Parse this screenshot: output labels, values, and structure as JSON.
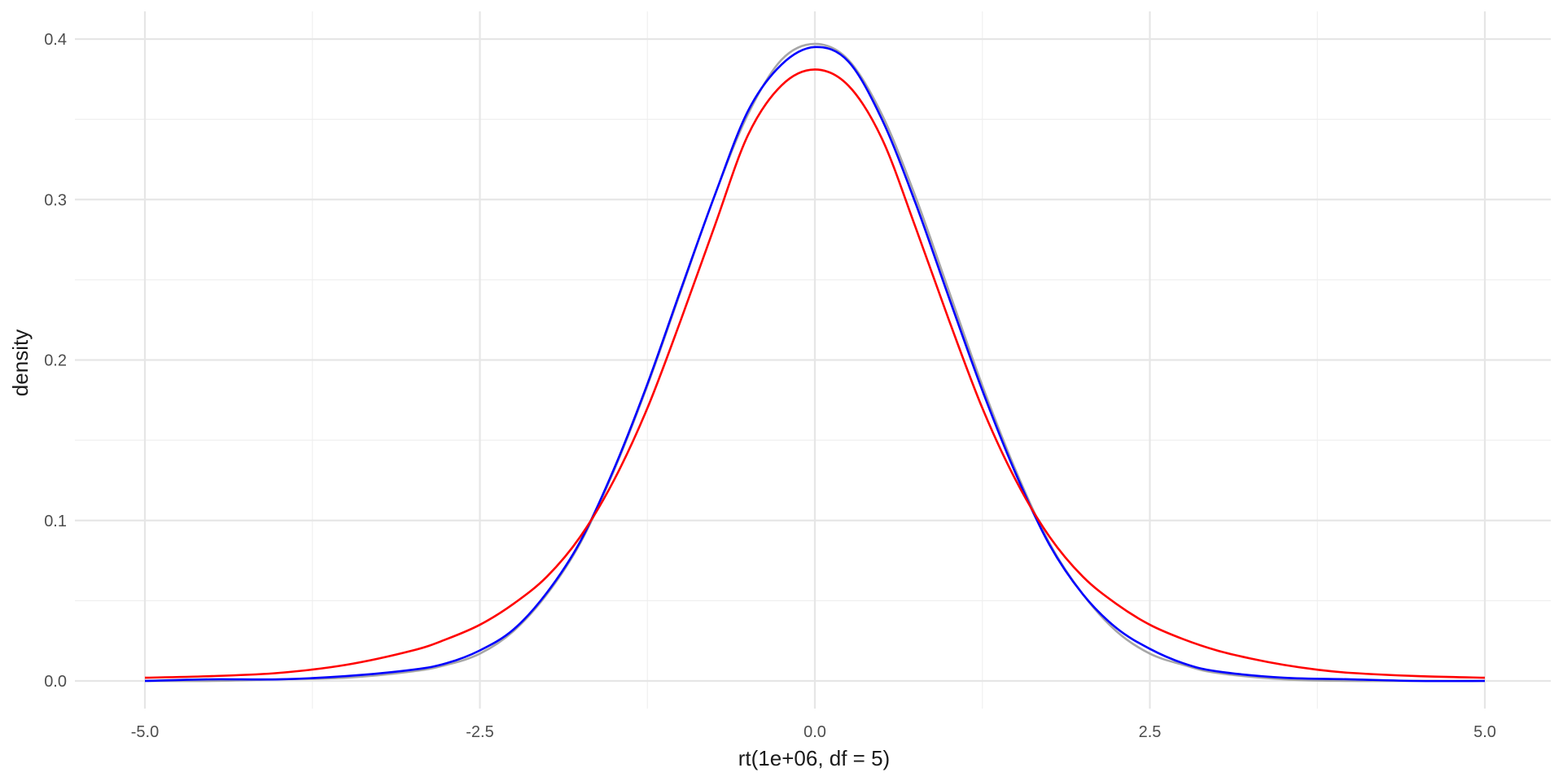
{
  "chart_data": {
    "type": "line",
    "title": "",
    "xlabel": "rt(1e+06, df = 5)",
    "ylabel": "density",
    "xlim": [
      -5.2,
      5.5
    ],
    "ylim": [
      -0.01,
      0.42
    ],
    "x_ticks": [
      -5.0,
      -2.5,
      0.0,
      2.5,
      5.0
    ],
    "x_tick_labels": [
      "-5.0",
      "-2.5",
      "0.0",
      "2.5",
      "5.0"
    ],
    "y_ticks": [
      0.0,
      0.1,
      0.2,
      0.3,
      0.4
    ],
    "y_tick_labels": [
      "0.0",
      "0.1",
      "0.2",
      "0.3",
      "0.4"
    ],
    "x_minor": [
      -3.75,
      -1.25,
      1.25,
      3.75
    ],
    "y_minor": [
      0.05,
      0.15,
      0.25,
      0.35
    ],
    "grid": true,
    "legend": "none",
    "series": [
      {
        "color": "#a6a6a6",
        "x": [
          -5.0,
          -4.5,
          -4.0,
          -3.5,
          -3.0,
          -2.75,
          -2.5,
          -2.25,
          -2.0,
          -1.75,
          -1.5,
          -1.25,
          -1.0,
          -0.75,
          -0.5,
          -0.25,
          0.0,
          0.25,
          0.5,
          0.75,
          1.0,
          1.25,
          1.5,
          1.75,
          2.0,
          2.25,
          2.5,
          2.75,
          3.0,
          3.5,
          4.0,
          4.5,
          5.0
        ],
        "y": [
          0.0,
          0.0,
          0.001,
          0.002,
          0.006,
          0.01,
          0.017,
          0.031,
          0.054,
          0.086,
          0.131,
          0.184,
          0.243,
          0.302,
          0.353,
          0.387,
          0.397,
          0.387,
          0.353,
          0.302,
          0.243,
          0.184,
          0.131,
          0.086,
          0.054,
          0.031,
          0.017,
          0.01,
          0.005,
          0.001,
          0.0,
          0.0,
          0.0
        ]
      },
      {
        "color": "#0000ff",
        "x": [
          -5.0,
          -4.5,
          -4.0,
          -3.5,
          -3.0,
          -2.75,
          -2.5,
          -2.25,
          -2.0,
          -1.75,
          -1.5,
          -1.25,
          -1.0,
          -0.75,
          -0.5,
          -0.25,
          0.0,
          0.25,
          0.5,
          0.75,
          1.0,
          1.25,
          1.5,
          1.75,
          2.0,
          2.25,
          2.5,
          2.75,
          3.0,
          3.5,
          4.0,
          4.5,
          5.0
        ],
        "y": [
          0.0,
          0.001,
          0.001,
          0.003,
          0.007,
          0.011,
          0.019,
          0.032,
          0.055,
          0.087,
          0.132,
          0.185,
          0.244,
          0.302,
          0.355,
          0.384,
          0.395,
          0.386,
          0.35,
          0.298,
          0.239,
          0.181,
          0.129,
          0.085,
          0.054,
          0.033,
          0.02,
          0.011,
          0.006,
          0.002,
          0.001,
          0.0,
          0.0
        ]
      },
      {
        "color": "#ff0000",
        "x": [
          -5.0,
          -4.5,
          -4.0,
          -3.5,
          -3.0,
          -2.75,
          -2.5,
          -2.25,
          -2.0,
          -1.75,
          -1.5,
          -1.25,
          -1.0,
          -0.75,
          -0.5,
          -0.25,
          0.0,
          0.25,
          0.5,
          0.75,
          1.0,
          1.25,
          1.5,
          1.75,
          2.0,
          2.25,
          2.5,
          2.75,
          3.0,
          3.25,
          3.5,
          3.75,
          4.0,
          4.5,
          5.0
        ],
        "y": [
          0.002,
          0.003,
          0.005,
          0.01,
          0.019,
          0.026,
          0.035,
          0.048,
          0.065,
          0.09,
          0.125,
          0.17,
          0.225,
          0.283,
          0.34,
          0.371,
          0.381,
          0.371,
          0.338,
          0.283,
          0.225,
          0.17,
          0.125,
          0.09,
          0.065,
          0.048,
          0.035,
          0.026,
          0.019,
          0.014,
          0.01,
          0.007,
          0.005,
          0.003,
          0.002
        ]
      }
    ]
  }
}
